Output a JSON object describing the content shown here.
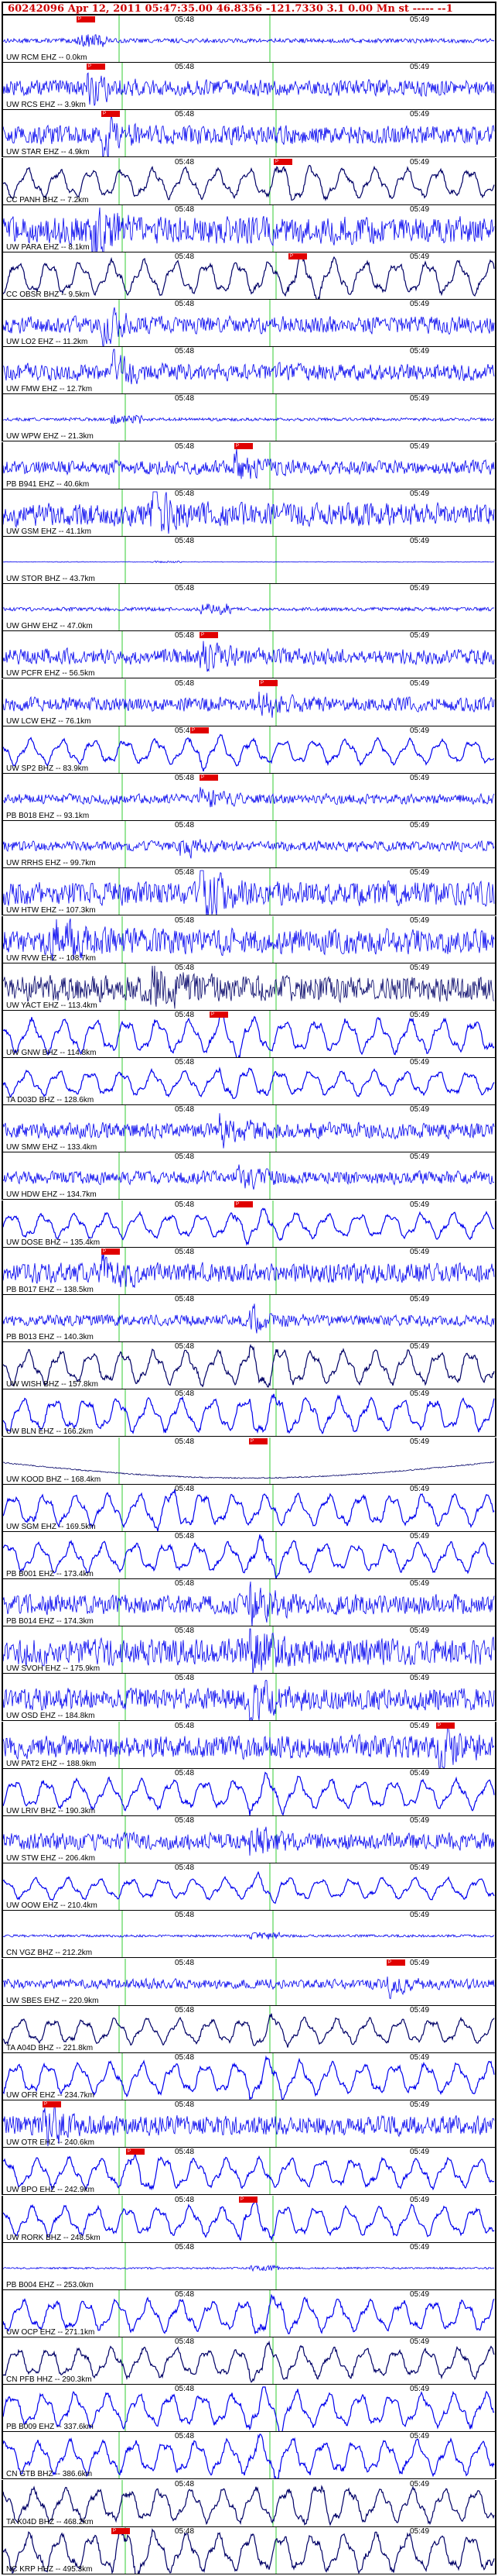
{
  "header": {
    "title": "60242096  Apr 12, 2011 05:47:35.00    46.8356  -121.7330    3.1 0.00  Mn st ----- --1"
  },
  "time_labels": [
    "05:48",
    "05:49"
  ],
  "colors": {
    "trace_blue": "#0000ee",
    "trace_dark": "#000066",
    "pick_red": "#e00000",
    "marker_green": "#33cc33",
    "title_red": "#cc0000"
  },
  "panels": [
    {
      "station": "UW RCM EHZ --  0.0km",
      "style": "blue",
      "amp": 0.35,
      "event": 0.15,
      "pick": "P",
      "line": "flat"
    },
    {
      "station": "UW RCS EHZ --  3.9km",
      "style": "blue",
      "amp": 0.55,
      "event": 0.17,
      "pick": "P"
    },
    {
      "station": "UW STAR EHZ --  4.9km",
      "style": "blue",
      "amp": 0.65,
      "event": 0.2,
      "pick": "P"
    },
    {
      "station": "CC PANH BHZ --  7.2km",
      "style": "dark",
      "amp": 0.7,
      "event": 0.55,
      "pick": "P",
      "line": "wave"
    },
    {
      "station": "UW PARA EHZ --  8.1km",
      "style": "blue",
      "amp": 0.95,
      "event": 0.18
    },
    {
      "station": "CC OBSR BHZ --  9.5km",
      "style": "dark",
      "amp": 0.8,
      "event": 0.58,
      "pick": "P",
      "line": "wave"
    },
    {
      "station": "UW LO2 EHZ -- 11.2km",
      "style": "blue",
      "amp": 0.6,
      "event": 0.2
    },
    {
      "station": "UW FMW EHZ -- 12.7km",
      "style": "blue",
      "amp": 0.6,
      "event": 0.21
    },
    {
      "station": "UW WPW EHZ -- 21.3km",
      "style": "blue",
      "amp": 0.25,
      "event": 0.22,
      "line": "flat"
    },
    {
      "station": "PB B941 EHZ -- 40.6km",
      "style": "blue",
      "amp": 0.5,
      "event": 0.47,
      "pick": "P"
    },
    {
      "station": "UW GSM EHZ -- 41.1km",
      "style": "blue",
      "amp": 0.8,
      "event": 0.3
    },
    {
      "station": "UW STOR BHZ -- 43.7km",
      "style": "blue",
      "amp": 0.05,
      "event": 0.3,
      "line": "flat"
    },
    {
      "station": "UW GHW EHZ -- 47.0km",
      "style": "blue",
      "amp": 0.3,
      "event": 0.4,
      "line": "flat"
    },
    {
      "station": "UW PCFR EHZ -- 56.5km",
      "style": "blue",
      "amp": 0.55,
      "event": 0.4,
      "pick": "P"
    },
    {
      "station": "UW LCW EHZ -- 76.1km",
      "style": "blue",
      "amp": 0.5,
      "event": 0.52,
      "pick": "P"
    },
    {
      "station": "UW SP2 BHZ -- 83.9km",
      "style": "blue",
      "amp": 0.6,
      "event": 0.38,
      "pick": "P",
      "line": "wave"
    },
    {
      "station": "PB B018 EHZ -- 93.1km",
      "style": "blue",
      "amp": 0.35,
      "event": 0.4,
      "pick": "P"
    },
    {
      "station": "UW RRHS EHZ -- 99.7km",
      "style": "blue",
      "amp": 0.35,
      "event": 0.36
    },
    {
      "station": "UW HTW EHZ -- 107.3km",
      "style": "blue",
      "amp": 0.85,
      "event": 0.4
    },
    {
      "station": "UW RVW EHZ -- 108.7km",
      "style": "blue",
      "amp": 0.9,
      "event": 0.1
    },
    {
      "station": "UW YACT EHZ -- 113.4km",
      "style": "dark",
      "amp": 0.9,
      "event": 0.3
    },
    {
      "station": "UW GNW BHZ -- 114.8km",
      "style": "blue",
      "amp": 0.8,
      "event": 0.42,
      "pick": "P",
      "line": "wave"
    },
    {
      "station": "TA D03D BHZ -- 128.6km",
      "style": "blue",
      "amp": 0.6,
      "event": 0.44,
      "line": "wave"
    },
    {
      "station": "UW SMW EHZ -- 133.4km",
      "style": "blue",
      "amp": 0.55,
      "event": 0.44
    },
    {
      "station": "UW HDW EHZ -- 134.7km",
      "style": "blue",
      "amp": 0.45,
      "event": 0.47
    },
    {
      "station": "UW DOSE BHZ -- 135.4km",
      "style": "blue",
      "amp": 0.6,
      "event": 0.47,
      "pick": "P",
      "line": "wave"
    },
    {
      "station": "PB B017 EHZ -- 138.5km",
      "style": "blue",
      "amp": 0.7,
      "event": 0.2,
      "pick": "P"
    },
    {
      "station": "PB B013 EHZ -- 140.3km",
      "style": "blue",
      "amp": 0.4,
      "event": 0.5
    },
    {
      "station": "UW WISH BHZ -- 157.8km",
      "style": "dark",
      "amp": 0.8,
      "event": 0.5,
      "line": "wave"
    },
    {
      "station": "UW BLN EHZ -- 166.2km",
      "style": "blue",
      "amp": 0.8,
      "event": 0.5,
      "line": "wave"
    },
    {
      "station": "UW KOOD BHZ -- 168.4km",
      "style": "dark",
      "amp": 0.3,
      "event": 0.5,
      "pick": "P",
      "line": "drift"
    },
    {
      "station": "UW SGM EHZ -- 169.5km",
      "style": "blue",
      "amp": 0.75,
      "event": 0.3,
      "line": "wave"
    },
    {
      "station": "PB B001 EHZ -- 173.4km",
      "style": "blue",
      "amp": 0.7,
      "event": 0.5,
      "line": "wave"
    },
    {
      "station": "PB B014 EHZ -- 174.3km",
      "style": "blue",
      "amp": 0.7,
      "event": 0.5
    },
    {
      "station": "UW SVOH EHZ -- 175.9km",
      "style": "blue",
      "amp": 0.95,
      "event": 0.5
    },
    {
      "station": "UW OSD EHZ -- 184.8km",
      "style": "blue",
      "amp": 0.8,
      "event": 0.5
    },
    {
      "station": "UW PAT2 EHZ -- 188.9km",
      "style": "blue",
      "amp": 0.8,
      "event": 0.88,
      "pick": "P"
    },
    {
      "station": "UW LRIV BHZ -- 190.3km",
      "style": "blue",
      "amp": 0.7,
      "event": 0.5,
      "line": "wave"
    },
    {
      "station": "UW STW EHZ -- 206.4km",
      "style": "blue",
      "amp": 0.6,
      "event": 0.5
    },
    {
      "station": "UW OOW EHZ -- 210.4km",
      "style": "blue",
      "amp": 0.5,
      "event": 0.5,
      "line": "wave"
    },
    {
      "station": "CN VGZ BHZ -- 212.2km",
      "style": "blue",
      "amp": 0.2,
      "event": 0.5,
      "line": "flat"
    },
    {
      "station": "UW SBES EHZ -- 220.9km",
      "style": "blue",
      "amp": 0.35,
      "event": 0.78,
      "pick": "P"
    },
    {
      "station": "TA A04D BHZ -- 221.8km",
      "style": "dark",
      "amp": 0.6,
      "event": 0.5,
      "line": "wave"
    },
    {
      "station": "UW OFR EHZ -- 234.7km",
      "style": "blue",
      "amp": 0.75,
      "event": 0.5,
      "line": "wave"
    },
    {
      "station": "UW OTR EHZ -- 240.6km",
      "style": "blue",
      "amp": 0.7,
      "event": 0.08,
      "pick": "P"
    },
    {
      "station": "UW BPO EHZ -- 242.9km",
      "style": "blue",
      "amp": 0.7,
      "event": 0.25,
      "pick": "P",
      "line": "wave"
    },
    {
      "station": "UW RORK BHZ -- 248.5km",
      "style": "blue",
      "amp": 0.7,
      "event": 0.48,
      "pick": "P",
      "line": "wave"
    },
    {
      "station": "PB B004 EHZ -- 253.0km",
      "style": "blue",
      "amp": 0.15,
      "event": 0.5,
      "line": "flat"
    },
    {
      "station": "UW OCP EHZ -- 271.1km",
      "style": "blue",
      "amp": 0.75,
      "event": 0.5,
      "line": "wave"
    },
    {
      "station": "CN PFB HHZ -- 290.3km",
      "style": "dark",
      "amp": 0.7,
      "event": 0.5,
      "line": "wave"
    },
    {
      "station": "PB B009 EHZ -- 337.6km",
      "style": "blue",
      "amp": 0.8,
      "event": 0.5,
      "line": "wave"
    },
    {
      "station": "CN GTB BHZ -- 386.6km",
      "style": "blue",
      "amp": 0.8,
      "event": 0.5,
      "line": "wave"
    },
    {
      "station": "TA K04D BHZ -- 468.2km",
      "style": "dark",
      "amp": 0.8,
      "event": 0.6,
      "line": "wave"
    },
    {
      "station": "NC KRP HHZ -- 495.3km",
      "style": "dark",
      "amp": 0.9,
      "event": 0.22,
      "pick": "P",
      "line": "wave"
    }
  ]
}
